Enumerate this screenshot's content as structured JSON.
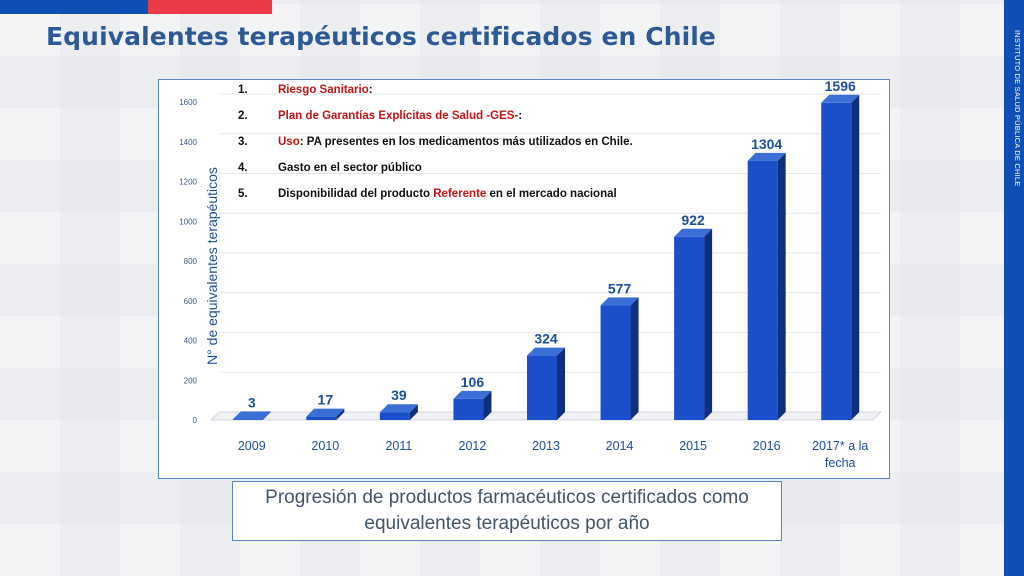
{
  "page": {
    "title": "Equivalentes terapéuticos certificados en Chile",
    "side_label": "INSTITUTO DE SALUD PÚBLICA DE CHILE",
    "caption_line1": "Progresión de productos farmacéuticos certificados como",
    "caption_line2": "equivalentes terapéuticos por año"
  },
  "colors": {
    "brand_blue": "#0f4fb3",
    "brand_red": "#ea3a47",
    "title": "#2d5a95",
    "bar_front": "#1a4fc9",
    "bar_side": "#0d2f7f",
    "bar_top": "#3c6fd6",
    "label": "#1f4e9b",
    "criteria_red": "#c01515"
  },
  "criteria": [
    {
      "num": "1.",
      "parts": [
        {
          "text": "Riesgo Sanitario",
          "red": true
        },
        {
          "text": ":",
          "red": false
        }
      ]
    },
    {
      "num": "2.",
      "parts": [
        {
          "text": "Plan de Garantías Explícitas de Salud  -GES-",
          "red": true
        },
        {
          "text": ":",
          "red": false
        }
      ]
    },
    {
      "num": "3.",
      "parts": [
        {
          "text": "Uso",
          "red": true
        },
        {
          "text": ":  PA presentes en los medicamentos más utilizados en Chile.",
          "red": false
        }
      ]
    },
    {
      "num": "4.",
      "parts": [
        {
          "text": "Gasto en el sector público",
          "red": false
        }
      ]
    },
    {
      "num": "5.",
      "parts": [
        {
          "text": "Disponibilidad del producto ",
          "red": false
        },
        {
          "text": "Referente",
          "red": true
        },
        {
          "text": "  en el mercado nacional",
          "red": false
        }
      ]
    }
  ],
  "chart_data": {
    "type": "bar",
    "categories": [
      "2009",
      "2010",
      "2011",
      "2012",
      "2013",
      "2014",
      "2015",
      "2016",
      "2017* a la fecha"
    ],
    "category_lines": [
      [
        "2009"
      ],
      [
        "2010"
      ],
      [
        "2011"
      ],
      [
        "2012"
      ],
      [
        "2013"
      ],
      [
        "2014"
      ],
      [
        "2015"
      ],
      [
        "2016"
      ],
      [
        "2017* a la",
        "fecha"
      ]
    ],
    "values": [
      3,
      17,
      39,
      106,
      324,
      577,
      922,
      1304,
      1596
    ],
    "title": "",
    "xlabel": "",
    "ylabel": "N° de equivalentes terapéuticos",
    "ylim": [
      0,
      1600
    ],
    "yticks": [
      0,
      200,
      400,
      600,
      800,
      1000,
      1200,
      1400,
      1600
    ],
    "grid": true,
    "data_labels": true,
    "style": "3d"
  }
}
